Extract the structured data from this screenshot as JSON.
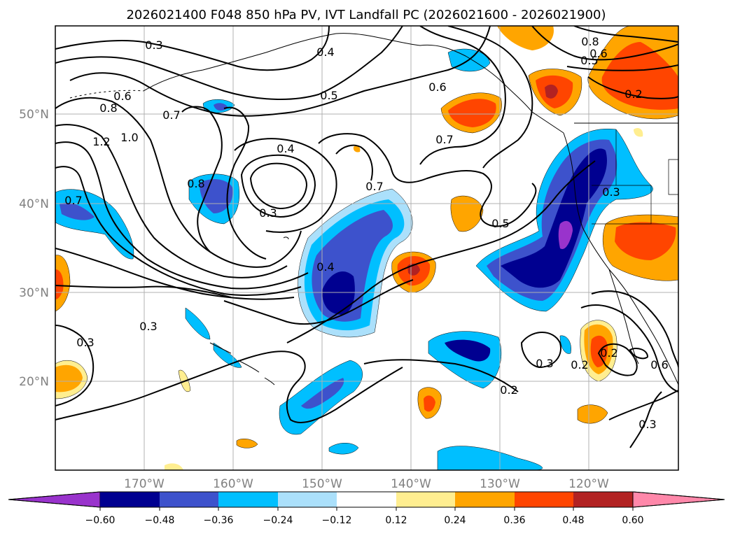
{
  "title": "2026021400 F048 850 hPa PV, IVT Landfall PC (2026021600 - 2026021900)",
  "lat_labels": [
    "50°N",
    "40°N",
    "30°N",
    "20°N"
  ],
  "lon_labels": [
    "170°W",
    "160°W",
    "150°W",
    "140°W",
    "130°W",
    "120°W"
  ],
  "colorbar": {
    "ticks": [
      "−0.60",
      "−0.48",
      "−0.36",
      "−0.24",
      "−0.12",
      "0.12",
      "0.24",
      "0.36",
      "0.48",
      "0.60"
    ],
    "colors": [
      "#9933cc",
      "#000090",
      "#3d52cc",
      "#00bfff",
      "#abe0fb",
      "#ffffff",
      "#ffee90",
      "#ffa500",
      "#ff4500",
      "#b22222",
      "#ff88aa"
    ]
  },
  "contour_labels": [
    "0.3",
    "0.4",
    "0.6",
    "0.8",
    "0.7",
    "0.5",
    "0.6",
    "0.8",
    "1.2",
    "1.0",
    "0.7",
    "0.4",
    "0.3",
    "0.8",
    "0.7",
    "0.7",
    "0.5",
    "0.4",
    "0.3",
    "0.3",
    "0.2",
    "0.2",
    "0.3",
    "0.2",
    "0.6",
    "0.3",
    "0.2",
    "0.6",
    "0.5",
    "0.3"
  ]
}
